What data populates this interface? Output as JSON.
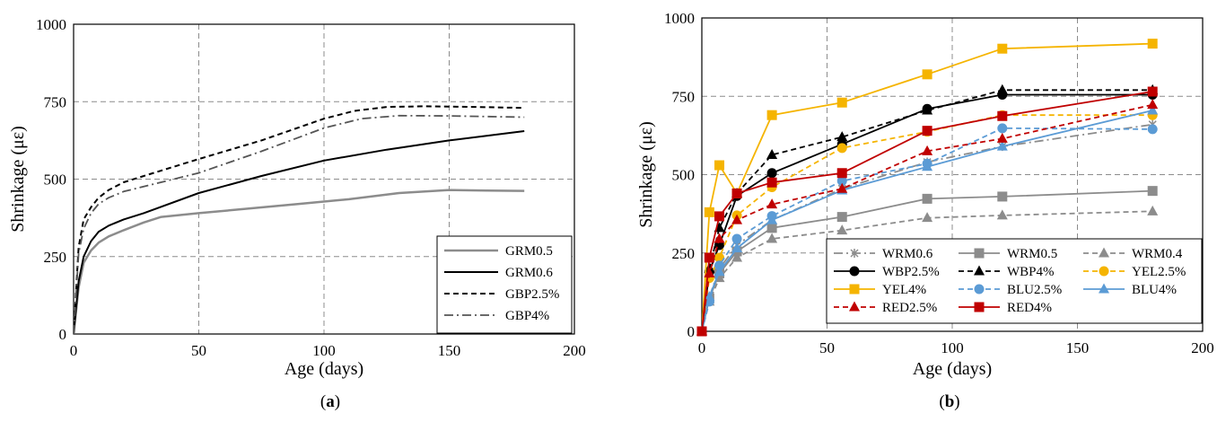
{
  "chart_data": [
    {
      "panel": "a",
      "type": "line",
      "caption": "(a)",
      "xlabel": "Age (days)",
      "ylabel": "Shrinkage (με)",
      "xlim": [
        0,
        200
      ],
      "ylim": [
        0,
        1000
      ],
      "xticks": [
        "0",
        "50",
        "100",
        "150",
        "200"
      ],
      "yticks": [
        "0",
        "250",
        "500",
        "750",
        "1000"
      ],
      "grid": true,
      "legend_position": "bottom-right",
      "series": [
        {
          "name": "GRM0.5",
          "color": "#8c8c8c",
          "dash": "solid",
          "width": 2.5,
          "x": [
            0,
            2,
            4,
            7,
            10,
            14,
            20,
            28,
            35,
            50,
            70,
            90,
            110,
            130,
            150,
            165,
            180
          ],
          "y": [
            0,
            150,
            230,
            270,
            295,
            315,
            335,
            360,
            378,
            390,
            405,
            420,
            435,
            455,
            465,
            463,
            462
          ]
        },
        {
          "name": "GRM0.6",
          "color": "#000000",
          "dash": "solid",
          "width": 2,
          "x": [
            0,
            2,
            4,
            7,
            10,
            14,
            20,
            28,
            50,
            75,
            100,
            125,
            150,
            180
          ],
          "y": [
            0,
            170,
            250,
            300,
            330,
            350,
            370,
            390,
            455,
            510,
            560,
            595,
            625,
            655
          ]
        },
        {
          "name": "GBP2.5%",
          "color": "#000000",
          "dash": "dashed",
          "width": 2,
          "x": [
            0,
            2,
            4,
            7,
            10,
            14,
            20,
            30,
            50,
            75,
            100,
            112,
            125,
            140,
            160,
            180
          ],
          "y": [
            0,
            280,
            370,
            410,
            440,
            465,
            490,
            515,
            565,
            625,
            695,
            720,
            733,
            735,
            733,
            730
          ]
        },
        {
          "name": "GBP4%",
          "color": "#555555",
          "dash": "dashdot",
          "width": 1.8,
          "x": [
            0,
            2,
            4,
            7,
            10,
            14,
            20,
            30,
            50,
            75,
            100,
            115,
            130,
            150,
            180
          ],
          "y": [
            0,
            260,
            340,
            390,
            420,
            440,
            460,
            480,
            520,
            590,
            665,
            695,
            705,
            704,
            700
          ]
        }
      ]
    },
    {
      "panel": "b",
      "type": "line",
      "caption": "(b)",
      "xlabel": "Age (days)",
      "ylabel": "Shrinkage (με)",
      "xlim": [
        0,
        200
      ],
      "ylim": [
        0,
        1000
      ],
      "xticks": [
        "0",
        "50",
        "100",
        "150",
        "200"
      ],
      "yticks": [
        "0",
        "250",
        "500",
        "750",
        "1000"
      ],
      "grid": true,
      "legend_position": "bottom-right",
      "legend_columns": 3,
      "series": [
        {
          "name": "WRM0.6",
          "color": "#8c8c8c",
          "dash": "dashdot",
          "marker": "star",
          "x": [
            0,
            3,
            7,
            14,
            28,
            56,
            90,
            120,
            180
          ],
          "y": [
            0,
            110,
            200,
            275,
            355,
            455,
            540,
            590,
            660
          ]
        },
        {
          "name": "WRM0.5",
          "color": "#8c8c8c",
          "dash": "solid",
          "marker": "square",
          "x": [
            0,
            3,
            7,
            14,
            28,
            56,
            90,
            120,
            180
          ],
          "y": [
            0,
            105,
            185,
            255,
            330,
            365,
            423,
            430,
            448
          ]
        },
        {
          "name": "WRM0.4",
          "color": "#8c8c8c",
          "dash": "dashed",
          "marker": "triangle",
          "x": [
            0,
            3,
            7,
            14,
            28,
            56,
            90,
            120,
            180
          ],
          "y": [
            0,
            95,
            170,
            235,
            295,
            322,
            362,
            370,
            383
          ]
        },
        {
          "name": "WBP2.5%",
          "color": "#000000",
          "dash": "solid",
          "marker": "circle",
          "x": [
            0,
            3,
            7,
            14,
            28,
            56,
            90,
            120,
            180
          ],
          "y": [
            0,
            190,
            275,
            432,
            505,
            597,
            710,
            755,
            755
          ]
        },
        {
          "name": "WBP4%",
          "color": "#000000",
          "dash": "dashed",
          "marker": "triangle",
          "x": [
            0,
            3,
            7,
            14,
            28,
            56,
            90,
            120,
            180
          ],
          "y": [
            0,
            200,
            330,
            440,
            563,
            620,
            705,
            770,
            770
          ]
        },
        {
          "name": "YEL2.5%",
          "color": "#f5b400",
          "dash": "dashed",
          "marker": "circle",
          "x": [
            0,
            3,
            7,
            14,
            28,
            56,
            90,
            120,
            180
          ],
          "y": [
            0,
            170,
            235,
            370,
            460,
            585,
            637,
            690,
            690
          ]
        },
        {
          "name": "YEL4%",
          "color": "#f5b400",
          "dash": "solid",
          "marker": "square",
          "x": [
            0,
            3,
            7,
            14,
            28,
            56,
            90,
            120,
            180
          ],
          "y": [
            0,
            380,
            530,
            440,
            690,
            730,
            820,
            902,
            918
          ]
        },
        {
          "name": "BLU2.5%",
          "color": "#5b9bd5",
          "dash": "dashed",
          "marker": "circle",
          "x": [
            0,
            3,
            7,
            14,
            28,
            56,
            90,
            120,
            180
          ],
          "y": [
            0,
            95,
            210,
            295,
            368,
            480,
            535,
            648,
            645
          ]
        },
        {
          "name": "BLU4%",
          "color": "#5b9bd5",
          "dash": "solid",
          "marker": "triangle",
          "x": [
            0,
            3,
            7,
            14,
            28,
            56,
            90,
            120,
            180
          ],
          "y": [
            0,
            110,
            190,
            265,
            355,
            450,
            525,
            590,
            705
          ]
        },
        {
          "name": "RED2.5%",
          "color": "#c00000",
          "dash": "dashed",
          "marker": "triangle",
          "x": [
            0,
            3,
            7,
            14,
            28,
            56,
            90,
            120,
            180
          ],
          "y": [
            0,
            185,
            295,
            355,
            405,
            455,
            575,
            615,
            723
          ]
        },
        {
          "name": "RED4%",
          "color": "#c00000",
          "dash": "solid",
          "marker": "square",
          "x": [
            0,
            3,
            7,
            14,
            28,
            56,
            90,
            120,
            180
          ],
          "y": [
            0,
            235,
            367,
            440,
            475,
            505,
            640,
            687,
            765
          ]
        }
      ]
    }
  ]
}
